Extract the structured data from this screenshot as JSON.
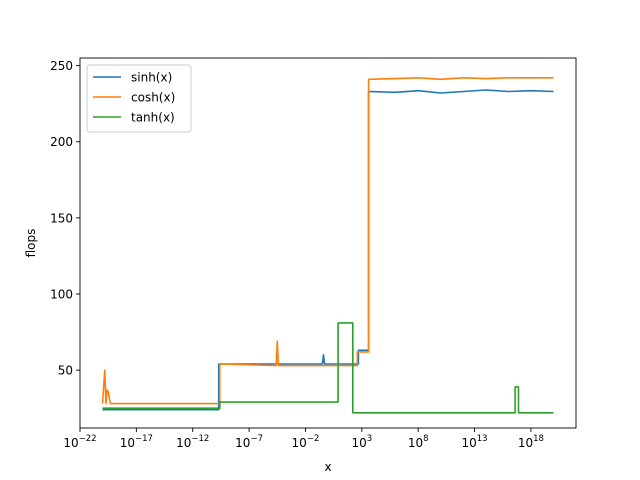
{
  "chart_data": {
    "type": "line",
    "xlabel": "x",
    "ylabel": "flops",
    "xscale": "log",
    "xlim_exp": [
      -22,
      22
    ],
    "ylim": [
      12,
      255
    ],
    "grid": false,
    "legend_position": "top-left",
    "x_ticks": [
      {
        "base": "10",
        "exp": "−22",
        "value_exp": -22
      },
      {
        "base": "10",
        "exp": "−17",
        "value_exp": -17
      },
      {
        "base": "10",
        "exp": "−12",
        "value_exp": -12
      },
      {
        "base": "10",
        "exp": "−7",
        "value_exp": -7
      },
      {
        "base": "10",
        "exp": "−2",
        "value_exp": -2
      },
      {
        "base": "10",
        "exp": "3",
        "value_exp": 3
      },
      {
        "base": "10",
        "exp": "8",
        "value_exp": 8
      },
      {
        "base": "10",
        "exp": "13",
        "value_exp": 13
      },
      {
        "base": "10",
        "exp": "18",
        "value_exp": 18
      }
    ],
    "y_ticks": [
      {
        "label": "50",
        "value": 50
      },
      {
        "label": "100",
        "value": 100
      },
      {
        "label": "150",
        "value": 150
      },
      {
        "label": "200",
        "value": 200
      },
      {
        "label": "250",
        "value": 250
      }
    ],
    "series": [
      {
        "name": "sinh(x)",
        "color": "#1f77b4",
        "log10_x": [
          -20,
          -9.7,
          -9.7,
          -0.5,
          -0.4,
          -0.3,
          -0.2,
          2.7,
          2.7,
          3.6,
          3.6,
          6,
          8,
          10,
          12,
          14,
          16,
          18,
          20
        ],
        "y": [
          24,
          24,
          54,
          54,
          60,
          54,
          54,
          54,
          63,
          63,
          233,
          232.5,
          233.5,
          232,
          233,
          234,
          233,
          233.5,
          233
        ]
      },
      {
        "name": "cosh(x)",
        "color": "#ff7f0e",
        "log10_x": [
          -20,
          -19.8,
          -19.7,
          -19.6,
          -19.5,
          -19.3,
          -19.2,
          -9.6,
          -9.6,
          -4.6,
          -4.5,
          -4.4,
          2.6,
          2.6,
          3.6,
          3.6,
          6,
          8,
          10,
          12,
          14,
          16,
          18,
          20
        ],
        "y": [
          28,
          50,
          28,
          37,
          36,
          28,
          28,
          28,
          54,
          53,
          69,
          53,
          53,
          62,
          62,
          241,
          241.5,
          242,
          241,
          242,
          241.5,
          242,
          242,
          242
        ]
      },
      {
        "name": "tanh(x)",
        "color": "#2ca02c",
        "log10_x": [
          -20,
          -9.6,
          -9.6,
          0.9,
          0.9,
          2.2,
          2.2,
          16.6,
          16.6,
          16.9,
          16.9,
          20
        ],
        "y": [
          25,
          25,
          29,
          29,
          81,
          81,
          22,
          22,
          39,
          39,
          22,
          22
        ]
      }
    ]
  }
}
